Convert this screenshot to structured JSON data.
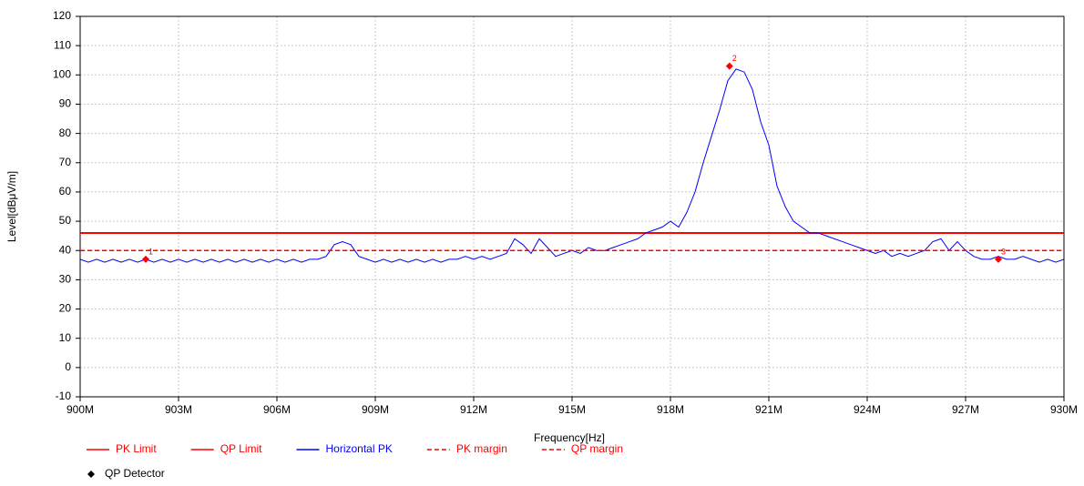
{
  "chart_data": {
    "type": "line",
    "xlabel": "Frequency[Hz]",
    "ylabel": "Level[dBμV/m]",
    "xlim": [
      900,
      930
    ],
    "xticks": [
      {
        "value": 900,
        "label": "900M"
      },
      {
        "value": 903,
        "label": "903M"
      },
      {
        "value": 906,
        "label": "906M"
      },
      {
        "value": 909,
        "label": "909M"
      },
      {
        "value": 912,
        "label": "912M"
      },
      {
        "value": 915,
        "label": "915M"
      },
      {
        "value": 918,
        "label": "918M"
      },
      {
        "value": 921,
        "label": "921M"
      },
      {
        "value": 924,
        "label": "924M"
      },
      {
        "value": 927,
        "label": "927M"
      },
      {
        "value": 930,
        "label": "930M"
      }
    ],
    "ylim": [
      -10,
      120
    ],
    "yticks": [
      -10,
      0,
      10,
      20,
      30,
      40,
      50,
      60,
      70,
      80,
      90,
      100,
      110,
      120
    ],
    "grid": true,
    "legend": "bottom",
    "series": [
      {
        "name": "PK Limit",
        "color": "#ff0000",
        "dashed": false,
        "x": [
          900,
          930
        ],
        "values": [
          46,
          46
        ]
      },
      {
        "name": "QP Limit",
        "color": "#ff0000",
        "dashed": false,
        "x": [
          900,
          930
        ],
        "values": [
          46,
          46
        ]
      },
      {
        "name": "Horizontal PK",
        "color": "#0000ff",
        "dashed": false,
        "x": [
          900,
          900.25,
          900.5,
          900.75,
          901,
          901.25,
          901.5,
          901.75,
          902,
          902.25,
          902.5,
          902.75,
          903,
          903.25,
          903.5,
          903.75,
          904,
          904.25,
          904.5,
          904.75,
          905,
          905.25,
          905.5,
          905.75,
          906,
          906.25,
          906.5,
          906.75,
          907,
          907.25,
          907.5,
          907.75,
          908,
          908.25,
          908.5,
          908.75,
          909,
          909.25,
          909.5,
          909.75,
          910,
          910.25,
          910.5,
          910.75,
          911,
          911.25,
          911.5,
          911.75,
          912,
          912.25,
          912.5,
          912.75,
          913,
          913.25,
          913.5,
          913.75,
          914,
          914.25,
          914.5,
          914.75,
          915,
          915.25,
          915.5,
          915.75,
          916,
          916.25,
          916.5,
          916.75,
          917,
          917.25,
          917.5,
          917.75,
          918,
          918.25,
          918.5,
          918.75,
          919,
          919.25,
          919.5,
          919.75,
          920,
          920.25,
          920.5,
          920.75,
          921,
          921.25,
          921.5,
          921.75,
          922,
          922.25,
          922.5,
          922.75,
          923,
          923.25,
          923.5,
          923.75,
          924,
          924.25,
          924.5,
          924.75,
          925,
          925.25,
          925.5,
          925.75,
          926,
          926.25,
          926.5,
          926.75,
          927,
          927.25,
          927.5,
          927.75,
          928,
          928.25,
          928.5,
          928.75,
          929,
          929.25,
          929.5,
          929.75,
          930
        ],
        "values": [
          37,
          36,
          37,
          36,
          37,
          36,
          37,
          36,
          37,
          36,
          37,
          36,
          37,
          36,
          37,
          36,
          37,
          36,
          37,
          36,
          37,
          36,
          37,
          36,
          37,
          36,
          37,
          36,
          37,
          37,
          38,
          42,
          43,
          42,
          38,
          37,
          36,
          37,
          36,
          37,
          36,
          37,
          36,
          37,
          36,
          37,
          37,
          38,
          37,
          38,
          37,
          38,
          39,
          44,
          42,
          39,
          44,
          41,
          38,
          39,
          40,
          39,
          41,
          40,
          40,
          41,
          42,
          43,
          44,
          46,
          47,
          48,
          50,
          48,
          53,
          60,
          70,
          79,
          88,
          98,
          102,
          101,
          95,
          84,
          76,
          62,
          55,
          50,
          48,
          46,
          46,
          45,
          44,
          43,
          42,
          41,
          40,
          39,
          40,
          38,
          39,
          38,
          39,
          40,
          43,
          44,
          40,
          43,
          40,
          38,
          37,
          37,
          38,
          37,
          37,
          38,
          37,
          36,
          37,
          36,
          37
        ]
      },
      {
        "name": "PK margin",
        "color": "#ff0000",
        "dashed": true,
        "x": [
          900,
          930
        ],
        "values": [
          40,
          40
        ]
      },
      {
        "name": "QP margin",
        "color": "#ff0000",
        "dashed": true,
        "x": [
          900,
          930
        ],
        "values": [
          40,
          40
        ]
      },
      {
        "name": "QP Detector",
        "type": "scatter",
        "color": "#ff0000",
        "x": [
          902,
          919.8,
          928
        ],
        "values": [
          37,
          103,
          37
        ],
        "labels": [
          "1",
          "2",
          "3"
        ]
      }
    ]
  }
}
